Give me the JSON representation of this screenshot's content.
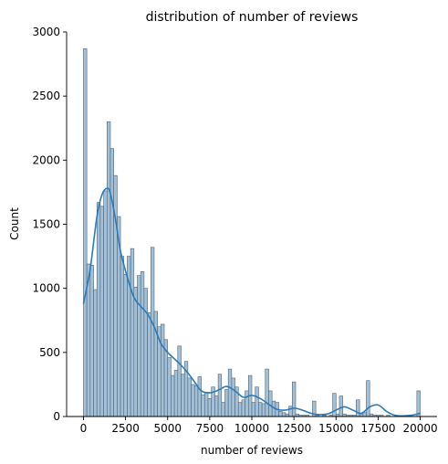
{
  "chart_data": {
    "type": "bar",
    "title": "distribution of number of reviews",
    "xlabel": "number of reviews",
    "ylabel": "Count",
    "xlim": [
      -1000,
      21000
    ],
    "ylim": [
      0,
      3000
    ],
    "xticks": [
      0,
      2500,
      5000,
      7500,
      10000,
      12500,
      15000,
      17500,
      20000
    ],
    "yticks": [
      0,
      500,
      1000,
      1500,
      2000,
      2500,
      3000
    ],
    "bin_width": 200,
    "bins": [
      {
        "x": 0,
        "count": 2870
      },
      {
        "x": 200,
        "count": 1190
      },
      {
        "x": 400,
        "count": 1180
      },
      {
        "x": 600,
        "count": 990
      },
      {
        "x": 800,
        "count": 1670
      },
      {
        "x": 1000,
        "count": 1640
      },
      {
        "x": 1200,
        "count": 1760
      },
      {
        "x": 1400,
        "count": 2300
      },
      {
        "x": 1600,
        "count": 2090
      },
      {
        "x": 1800,
        "count": 1880
      },
      {
        "x": 2000,
        "count": 1560
      },
      {
        "x": 2200,
        "count": 1250
      },
      {
        "x": 2400,
        "count": 1110
      },
      {
        "x": 2600,
        "count": 1250
      },
      {
        "x": 2800,
        "count": 1310
      },
      {
        "x": 3000,
        "count": 1010
      },
      {
        "x": 3200,
        "count": 1100
      },
      {
        "x": 3400,
        "count": 1130
      },
      {
        "x": 3600,
        "count": 1000
      },
      {
        "x": 3800,
        "count": 810
      },
      {
        "x": 4000,
        "count": 1320
      },
      {
        "x": 4200,
        "count": 820
      },
      {
        "x": 4400,
        "count": 700
      },
      {
        "x": 4600,
        "count": 720
      },
      {
        "x": 4800,
        "count": 600
      },
      {
        "x": 5000,
        "count": 460
      },
      {
        "x": 5200,
        "count": 320
      },
      {
        "x": 5400,
        "count": 360
      },
      {
        "x": 5600,
        "count": 550
      },
      {
        "x": 5800,
        "count": 330
      },
      {
        "x": 6000,
        "count": 430
      },
      {
        "x": 6200,
        "count": 300
      },
      {
        "x": 6400,
        "count": 250
      },
      {
        "x": 6600,
        "count": 240
      },
      {
        "x": 6800,
        "count": 310
      },
      {
        "x": 7000,
        "count": 170
      },
      {
        "x": 7200,
        "count": 190
      },
      {
        "x": 7400,
        "count": 140
      },
      {
        "x": 7600,
        "count": 230
      },
      {
        "x": 7800,
        "count": 160
      },
      {
        "x": 8000,
        "count": 330
      },
      {
        "x": 8200,
        "count": 110
      },
      {
        "x": 8400,
        "count": 210
      },
      {
        "x": 8600,
        "count": 370
      },
      {
        "x": 8800,
        "count": 300
      },
      {
        "x": 9000,
        "count": 230
      },
      {
        "x": 9200,
        "count": 110
      },
      {
        "x": 9400,
        "count": 130
      },
      {
        "x": 9600,
        "count": 200
      },
      {
        "x": 9800,
        "count": 320
      },
      {
        "x": 10000,
        "count": 110
      },
      {
        "x": 10200,
        "count": 230
      },
      {
        "x": 10400,
        "count": 110
      },
      {
        "x": 10600,
        "count": 100
      },
      {
        "x": 10800,
        "count": 370
      },
      {
        "x": 11000,
        "count": 200
      },
      {
        "x": 11200,
        "count": 120
      },
      {
        "x": 11400,
        "count": 110
      },
      {
        "x": 11600,
        "count": 40
      },
      {
        "x": 11800,
        "count": 30
      },
      {
        "x": 12000,
        "count": 20
      },
      {
        "x": 12200,
        "count": 80
      },
      {
        "x": 12400,
        "count": 270
      },
      {
        "x": 12600,
        "count": 20
      },
      {
        "x": 12800,
        "count": 10
      },
      {
        "x": 13000,
        "count": 10
      },
      {
        "x": 13200,
        "count": 10
      },
      {
        "x": 13400,
        "count": 0
      },
      {
        "x": 13600,
        "count": 120
      },
      {
        "x": 13800,
        "count": 10
      },
      {
        "x": 14000,
        "count": 0
      },
      {
        "x": 14200,
        "count": 10
      },
      {
        "x": 14400,
        "count": 0
      },
      {
        "x": 14600,
        "count": 10
      },
      {
        "x": 14800,
        "count": 180
      },
      {
        "x": 15000,
        "count": 20
      },
      {
        "x": 15200,
        "count": 160
      },
      {
        "x": 15400,
        "count": 20
      },
      {
        "x": 15600,
        "count": 10
      },
      {
        "x": 15800,
        "count": 10
      },
      {
        "x": 16000,
        "count": 10
      },
      {
        "x": 16200,
        "count": 130
      },
      {
        "x": 16400,
        "count": 20
      },
      {
        "x": 16600,
        "count": 30
      },
      {
        "x": 16800,
        "count": 280
      },
      {
        "x": 17000,
        "count": 20
      },
      {
        "x": 17200,
        "count": 10
      },
      {
        "x": 17400,
        "count": 10
      },
      {
        "x": 17600,
        "count": 10
      },
      {
        "x": 17800,
        "count": 0
      },
      {
        "x": 18000,
        "count": 10
      },
      {
        "x": 18200,
        "count": 0
      },
      {
        "x": 18400,
        "count": 0
      },
      {
        "x": 18600,
        "count": 0
      },
      {
        "x": 18800,
        "count": 0
      },
      {
        "x": 19000,
        "count": 0
      },
      {
        "x": 19200,
        "count": 0
      },
      {
        "x": 19400,
        "count": 0
      },
      {
        "x": 19600,
        "count": 0
      },
      {
        "x": 19800,
        "count": 200
      }
    ],
    "kde": {
      "x": [
        0,
        400,
        800,
        1100,
        1400,
        1600,
        1900,
        2200,
        2600,
        3000,
        3400,
        3800,
        4200,
        4600,
        5000,
        5400,
        5800,
        6200,
        6600,
        7000,
        7500,
        8000,
        8500,
        9000,
        9500,
        10000,
        10500,
        11000,
        11500,
        12000,
        12500,
        13000,
        13500,
        14000,
        14500,
        15000,
        15500,
        16000,
        16500,
        17000,
        17500,
        18000,
        18500,
        19000,
        19500,
        20000
      ],
      "y": [
        880,
        1150,
        1560,
        1730,
        1780,
        1740,
        1540,
        1290,
        1090,
        930,
        860,
        800,
        700,
        570,
        500,
        450,
        400,
        340,
        270,
        200,
        185,
        205,
        235,
        200,
        150,
        165,
        140,
        95,
        55,
        50,
        65,
        50,
        25,
        15,
        20,
        50,
        75,
        50,
        25,
        75,
        90,
        40,
        10,
        5,
        10,
        25
      ]
    },
    "colors": {
      "bar_fill": "#a4c0d8",
      "bar_edge": "#4d6473",
      "kde": "#2b7bb9"
    },
    "grid": false,
    "legend": "none"
  }
}
